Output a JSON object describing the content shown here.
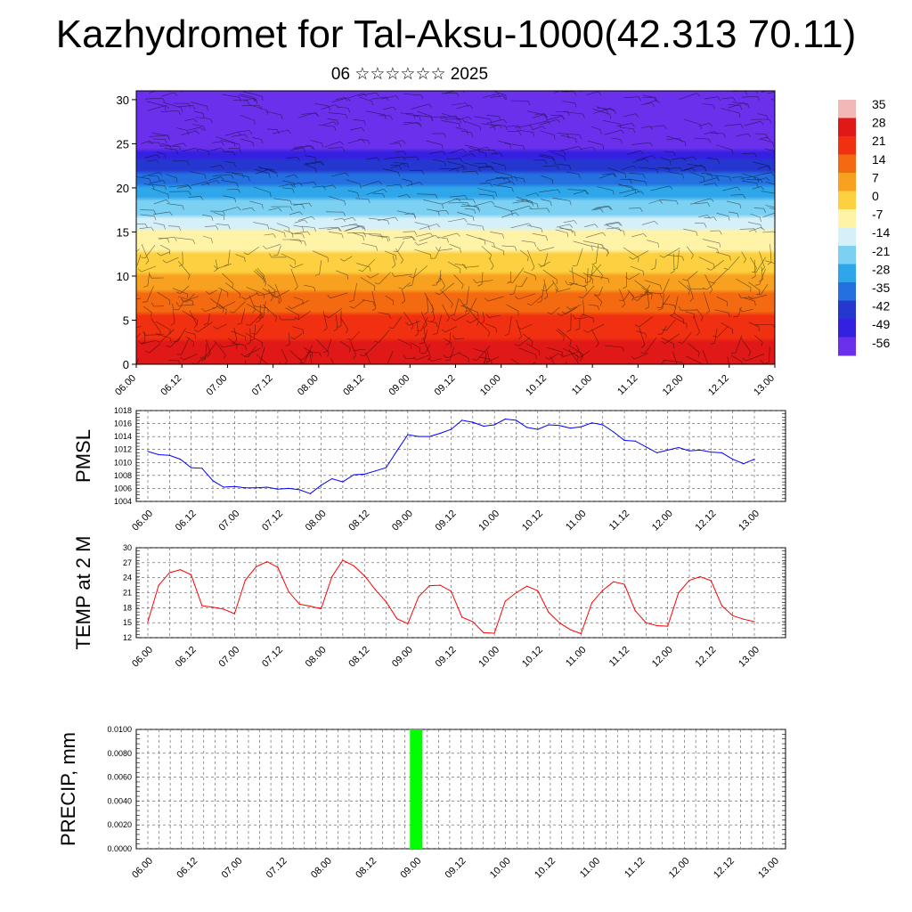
{
  "page": {
    "title": "Kazhydromet for Tal-Aksu-1000(42.313 70.11)",
    "subtitle": "06 ☆☆☆☆☆☆ 2025"
  },
  "time_labels": [
    "06.00",
    "06.12",
    "07.00",
    "07.12",
    "08.00",
    "08.12",
    "09.00",
    "09.12",
    "10.00",
    "10.12",
    "11.00",
    "11.12",
    "12.00",
    "12.12",
    "13.00"
  ],
  "chart_data": [
    {
      "type": "heatmap",
      "title": "Kazhydromet for Tal-Aksu-1000(42.313 70.11)",
      "subtitle": "06 ☆☆☆☆☆☆ 2025",
      "y_ticks": [
        0,
        5,
        10,
        15,
        20,
        25,
        30
      ],
      "ylim": [
        0,
        31
      ],
      "colorbar": {
        "labels": [
          "35",
          "28",
          "21",
          "14",
          "7",
          "0",
          "-7",
          "-14",
          "-21",
          "-28",
          "-35",
          "-42",
          "-49",
          "-56"
        ],
        "colors": [
          "#f2b8b8",
          "#e01818",
          "#f03010",
          "#f46a10",
          "#f8a020",
          "#fcd040",
          "#fff3a8",
          "#d6f0fa",
          "#7cd0f2",
          "#30a6ea",
          "#2470e0",
          "#2438d0",
          "#3420e0",
          "#6a30ec"
        ]
      },
      "temperature_profile": {
        "height": [
          0,
          5,
          10,
          15,
          20,
          25,
          30
        ],
        "value": [
          30,
          20,
          5,
          -10,
          -30,
          -55,
          -56
        ]
      },
      "wind_barbs": true
    },
    {
      "type": "line",
      "ylabel": "PMSL",
      "ylim": [
        1004,
        1018
      ],
      "y_ticks": [
        1004,
        1006,
        1008,
        1010,
        1012,
        1014,
        1016,
        1018
      ],
      "color": "#0000ff",
      "x_step_hours": 3,
      "values": [
        1011.7,
        1011.2,
        1011.1,
        1010.5,
        1009.2,
        1009.1,
        1007.2,
        1006.2,
        1006.3,
        1006.1,
        1006.1,
        1006.2,
        1005.9,
        1006.0,
        1005.8,
        1005.2,
        1006.5,
        1007.5,
        1007.0,
        1008.1,
        1008.2,
        1008.7,
        1009.2,
        1011.8,
        1014.3,
        1014.0,
        1014.0,
        1014.5,
        1015.1,
        1016.5,
        1016.2,
        1015.6,
        1015.8,
        1016.7,
        1016.5,
        1015.4,
        1015.1,
        1015.8,
        1015.7,
        1015.3,
        1015.5,
        1016.1,
        1015.8,
        1014.7,
        1013.4,
        1013.3,
        1012.4,
        1011.5,
        1011.9,
        1012.3,
        1011.8,
        1011.9,
        1011.6,
        1011.5,
        1010.5,
        1009.8,
        1010.5
      ]
    },
    {
      "type": "line",
      "ylabel": "TEMP at 2 M",
      "ylim": [
        12,
        30
      ],
      "y_ticks": [
        12,
        15,
        18,
        21,
        24,
        27,
        30
      ],
      "color": "#ff0000",
      "x_step_hours": 3,
      "values": [
        15.2,
        22.5,
        25.0,
        25.6,
        24.6,
        18.4,
        18.1,
        17.7,
        16.8,
        23.5,
        26.2,
        27.2,
        26.1,
        21.2,
        18.7,
        18.3,
        17.8,
        24.2,
        27.5,
        26.4,
        24.4,
        21.6,
        19.2,
        15.8,
        14.8,
        20.2,
        22.4,
        22.5,
        21.3,
        16.1,
        15.2,
        13.0,
        12.9,
        19.3,
        21.0,
        22.3,
        21.4,
        17.1,
        15.0,
        13.6,
        12.8,
        19.0,
        21.5,
        23.2,
        22.7,
        17.4,
        15.0,
        14.4,
        14.3,
        21.0,
        23.5,
        24.2,
        23.4,
        18.4,
        16.4,
        15.7,
        15.2
      ]
    },
    {
      "type": "bar",
      "ylabel": "PRECIP, mm",
      "ylim": [
        0,
        0.01
      ],
      "y_ticks": [
        "0.0000",
        "0.0020",
        "0.0040",
        "0.0060",
        "0.0080",
        "0.0100"
      ],
      "color": "#00ff00",
      "bars": [
        {
          "time": "09.00",
          "value": 0.01
        }
      ]
    }
  ]
}
